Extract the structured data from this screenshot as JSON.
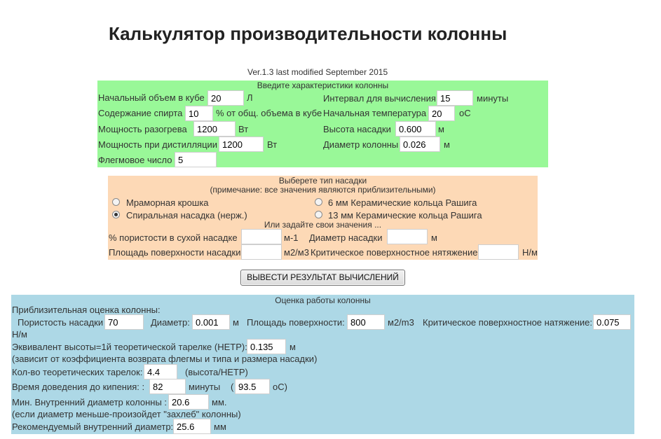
{
  "header": {
    "title": "Калькулятор производительности колонны",
    "version": "Ver.1.3 last modified September 2015"
  },
  "column_specs": {
    "heading": "Введите характеристики колонны",
    "initial_volume": {
      "label": "Начальный объем в кубе",
      "value": "20",
      "unit": "Л"
    },
    "interval": {
      "label": "Интервал для вычисления",
      "value": "15",
      "unit": "минуты"
    },
    "alcohol_content": {
      "label": "Содержание спирта",
      "value": "10",
      "unit": "% от общ. объема в кубе"
    },
    "initial_temp": {
      "label": "Начальная температура",
      "value": "20",
      "unit": "oC"
    },
    "heating_power": {
      "label": "Мощность разогрева",
      "value": "1200",
      "unit": "Вт"
    },
    "packing_height": {
      "label": "Высота насадки",
      "value": "0.600",
      "unit": "м"
    },
    "distill_power": {
      "label": "Мощность при дистилляции",
      "value": "1200",
      "unit": "Вт"
    },
    "column_diameter": {
      "label": "Диаметр колонны",
      "value": "0.026",
      "unit": "м"
    },
    "reflux_ratio": {
      "label": "Флегмовое число",
      "value": "5"
    }
  },
  "packing": {
    "heading": "Выберете тип насадки",
    "note": "(примечание: все значения являются приблизительными)",
    "options": [
      {
        "label": "Мраморная крошка",
        "checked": false
      },
      {
        "label": "6 мм Керамические кольца Рашига",
        "checked": false
      },
      {
        "label": "Спиральная насадка (нерж.)",
        "checked": true
      },
      {
        "label": "13 мм Керамические кольца Рашига",
        "checked": false
      }
    ],
    "custom_heading": "Или задайте свои значения ...",
    "porosity": {
      "label": "% пористости в сухой насадке",
      "value": "",
      "unit": "м-1"
    },
    "diameter": {
      "label": "Диаметр насадки",
      "value": "",
      "unit": "м"
    },
    "surface_area": {
      "label": "Площадь поверхности насадки",
      "value": "",
      "unit": "м2/м3"
    },
    "surface_tension": {
      "label": "Критическое поверхностное нятяжение",
      "value": "",
      "unit": "Н/м"
    }
  },
  "calculate_button": "ВЫВЕСТИ РЕЗУЛЬТАТ ВЫЧИСЛЕНИЙ",
  "results": {
    "heading": "Оценка работы колонны",
    "estimate_label": "Приблизительная оценка колонны:",
    "porosity": {
      "label": "Пористость насадки",
      "value": "70"
    },
    "diameter": {
      "label": "Диаметр:",
      "value": "0.001",
      "unit": "м"
    },
    "surface": {
      "label": "Площадь поверхности:",
      "value": "800",
      "unit": "м2/m3"
    },
    "tension": {
      "label": "Критическое поверхностное натяжение:",
      "value": "0.075",
      "unit": "Н/м"
    },
    "hetp": {
      "label": "Эквивалент высоты=1й теоретической тарелке (HETP):",
      "value": "0.135",
      "unit": "м",
      "note": "(зависит от коэффициента возврата флегмы и типа и размера насадки)"
    },
    "plates": {
      "label": "Кол-во теоретических тарелок:",
      "value": "4.4",
      "unit": "(высота/HETP)"
    },
    "boil_time": {
      "label": "Время доведения до кипения: :",
      "value": "82",
      "unit": "минуты",
      "paren_open": "(",
      "temp_value": "93.5",
      "temp_unit": "oC)"
    },
    "min_diameter": {
      "label": "Мин. Внутренний диаметр колонны :",
      "value": "20.6",
      "unit": "мм.",
      "note": "(если диаметр меньше-произойдет \"захлеб\" колонны)"
    },
    "recommended_diameter": {
      "label": "Рекомендуемый внутренний диаметр:",
      "value": "25.6",
      "unit": "мм"
    }
  }
}
